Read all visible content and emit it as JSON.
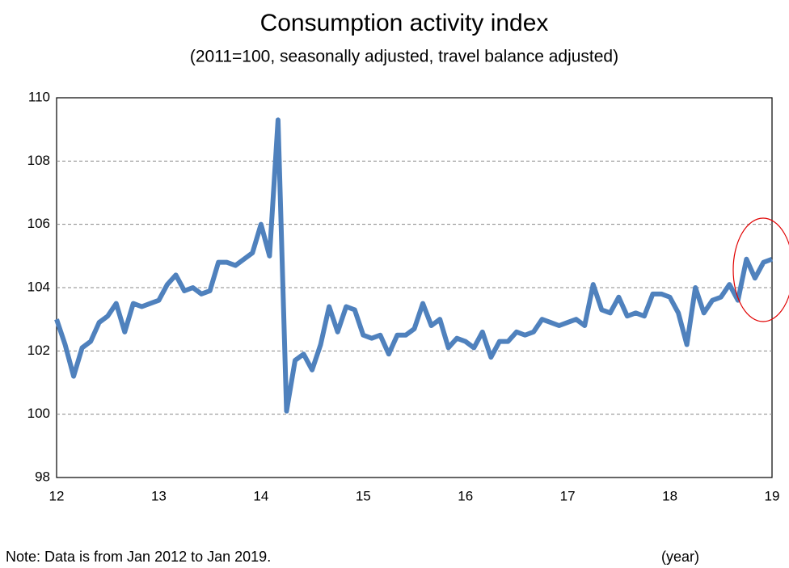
{
  "chart_data": {
    "type": "line",
    "title": "Consumption activity index",
    "subtitle": "(2011=100, seasonally adjusted, travel balance adjusted)",
    "note": "Note: Data is from Jan 2012 to Jan 2019.",
    "x_unit_label": "(year)",
    "categories": [
      "12",
      null,
      null,
      null,
      null,
      null,
      null,
      null,
      null,
      null,
      null,
      null,
      "13",
      null,
      null,
      null,
      null,
      null,
      null,
      null,
      null,
      null,
      null,
      null,
      "14",
      null,
      null,
      null,
      null,
      null,
      null,
      null,
      null,
      null,
      null,
      null,
      "15",
      null,
      null,
      null,
      null,
      null,
      null,
      null,
      null,
      null,
      null,
      null,
      "16",
      null,
      null,
      null,
      null,
      null,
      null,
      null,
      null,
      null,
      null,
      null,
      "17",
      null,
      null,
      null,
      null,
      null,
      null,
      null,
      null,
      null,
      null,
      null,
      "18",
      null,
      null,
      null,
      null,
      null,
      null,
      null,
      null,
      null,
      null,
      null,
      "19"
    ],
    "series": [
      {
        "color": "#4f81bd",
        "values": [
          103.0,
          102.2,
          101.2,
          102.1,
          102.3,
          102.9,
          103.1,
          103.5,
          102.6,
          103.5,
          103.4,
          103.5,
          103.6,
          104.1,
          104.4,
          103.9,
          104.0,
          103.8,
          103.9,
          104.8,
          104.8,
          104.7,
          104.9,
          105.1,
          106.0,
          105.0,
          109.3,
          100.1,
          101.7,
          101.9,
          101.4,
          102.2,
          103.4,
          102.6,
          103.4,
          103.3,
          102.5,
          102.4,
          102.5,
          101.9,
          102.5,
          102.5,
          102.7,
          103.5,
          102.8,
          103.0,
          102.1,
          102.4,
          102.3,
          102.1,
          102.6,
          101.8,
          102.3,
          102.3,
          102.6,
          102.5,
          102.6,
          103.0,
          102.9,
          102.8,
          102.9,
          103.0,
          102.8,
          104.1,
          103.3,
          103.2,
          103.7,
          103.1,
          103.2,
          103.1,
          103.8,
          103.8,
          103.7,
          103.2,
          102.2,
          104.0,
          103.2,
          103.6,
          103.7,
          104.1,
          103.6,
          104.9,
          104.3,
          104.8,
          104.9
        ]
      }
    ],
    "ylim": [
      98,
      110
    ],
    "yticks": [
      98,
      100,
      102,
      104,
      106,
      108,
      110
    ],
    "grid": true
  }
}
